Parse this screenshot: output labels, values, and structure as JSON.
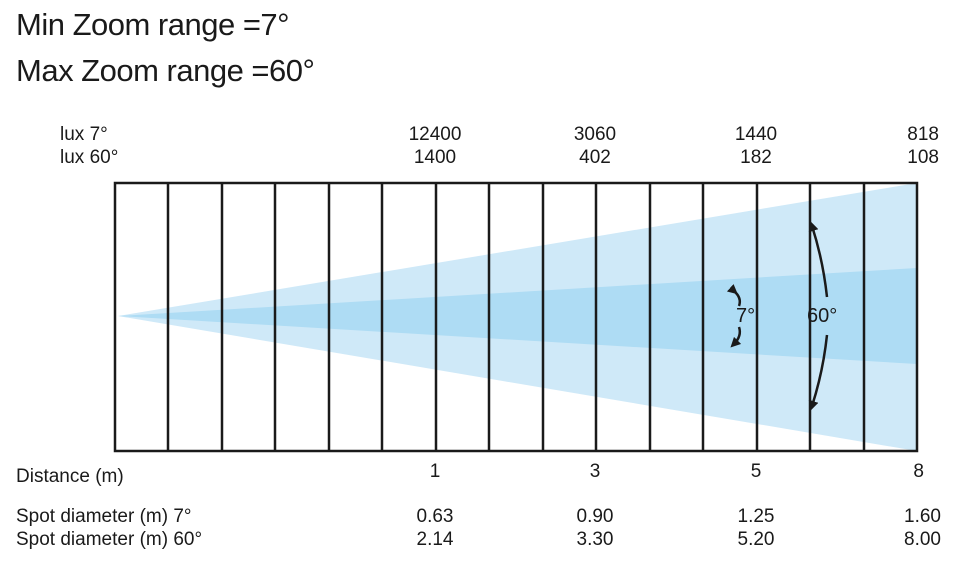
{
  "title": {
    "min_zoom": "Min Zoom range =7°",
    "max_zoom": "Max Zoom range =60°"
  },
  "lux": {
    "label_7": "lux 7°",
    "label_60": "lux 60°",
    "columns": [
      {
        "lux_7": "12400",
        "lux_60": "1400"
      },
      {
        "lux_7": "3060",
        "lux_60": "402"
      },
      {
        "lux_7": "1440",
        "lux_60": "182"
      },
      {
        "lux_7": "818",
        "lux_60": "108"
      }
    ]
  },
  "beam": {
    "angle_7": "7°",
    "angle_60": "60°",
    "colors": {
      "wide_beam": "#cfe9f8",
      "narrow_beam": "#aedcf4",
      "grid": "#1a1a1a"
    }
  },
  "distance": {
    "label": "Distance (m)",
    "values": [
      "1",
      "3",
      "5",
      "8"
    ]
  },
  "spot": {
    "label_7": "Spot diameter (m) 7°",
    "label_60": "Spot diameter (m) 60°",
    "values_7": [
      "0.63",
      "0.90",
      "1.25",
      "1.60"
    ],
    "values_60": [
      "2.14",
      "3.30",
      "5.20",
      "8.00"
    ]
  }
}
